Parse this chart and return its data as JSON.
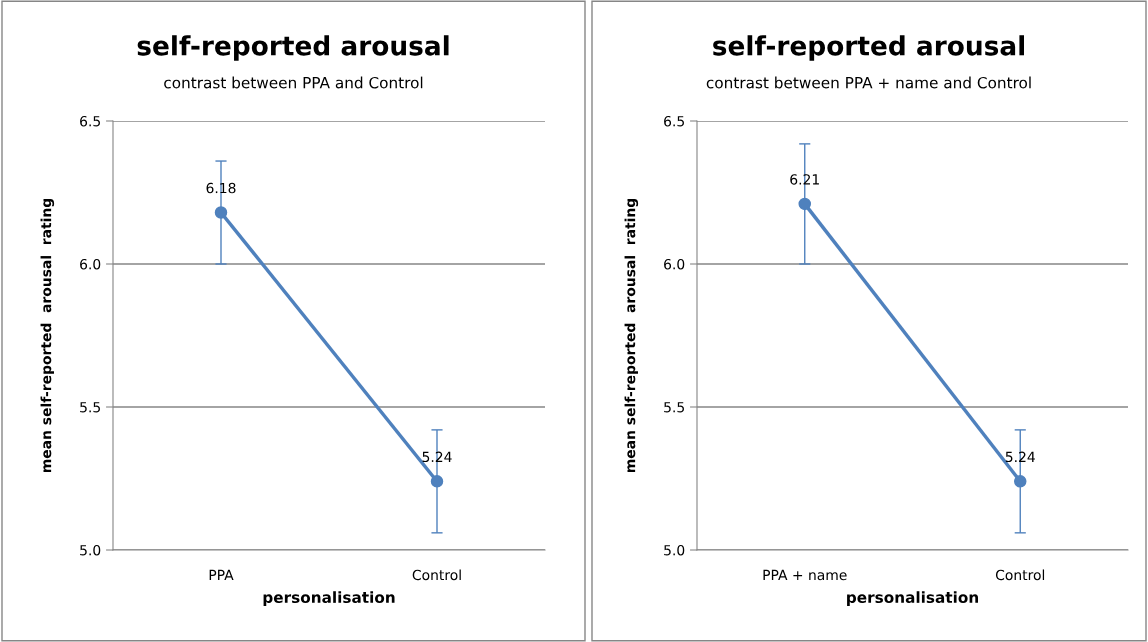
{
  "chart_data": [
    {
      "type": "line",
      "title": "self-reported arousal",
      "subtitle": "contrast between PPA and Control",
      "xlabel": "personalisation",
      "ylabel": "mean self-reported  arousal  rating",
      "categories": [
        "PPA",
        "Control"
      ],
      "series": [
        {
          "color": "#4f81bd",
          "values": [
            6.18,
            5.24
          ],
          "errors": [
            0.18,
            0.18
          ]
        }
      ],
      "ylim": [
        5.0,
        6.5
      ],
      "yticks": [
        {
          "value": 5.0,
          "label": "5.0"
        },
        {
          "value": 5.5,
          "label": "5.5"
        },
        {
          "value": 6.0,
          "label": "6.0"
        },
        {
          "value": 6.5,
          "label": "6.5"
        }
      ],
      "grid": "y",
      "legend": false,
      "marker": "circle",
      "line_style": "solid",
      "data_labels": true
    },
    {
      "type": "line",
      "title": "self-reported arousal",
      "subtitle": "contrast between PPA + name and Control",
      "xlabel": "personalisation",
      "ylabel": "mean self-reported  arousal  rating",
      "categories": [
        "PPA + name",
        "Control"
      ],
      "series": [
        {
          "color": "#4f81bd",
          "values": [
            6.21,
            5.24
          ],
          "errors": [
            0.21,
            0.18
          ]
        }
      ],
      "ylim": [
        5.0,
        6.5
      ],
      "yticks": [
        {
          "value": 5.0,
          "label": "5.0"
        },
        {
          "value": 5.5,
          "label": "5.5"
        },
        {
          "value": 6.0,
          "label": "6.0"
        },
        {
          "value": 6.5,
          "label": "6.5"
        }
      ],
      "grid": "y",
      "legend": false,
      "marker": "circle",
      "line_style": "solid",
      "data_labels": true
    }
  ]
}
